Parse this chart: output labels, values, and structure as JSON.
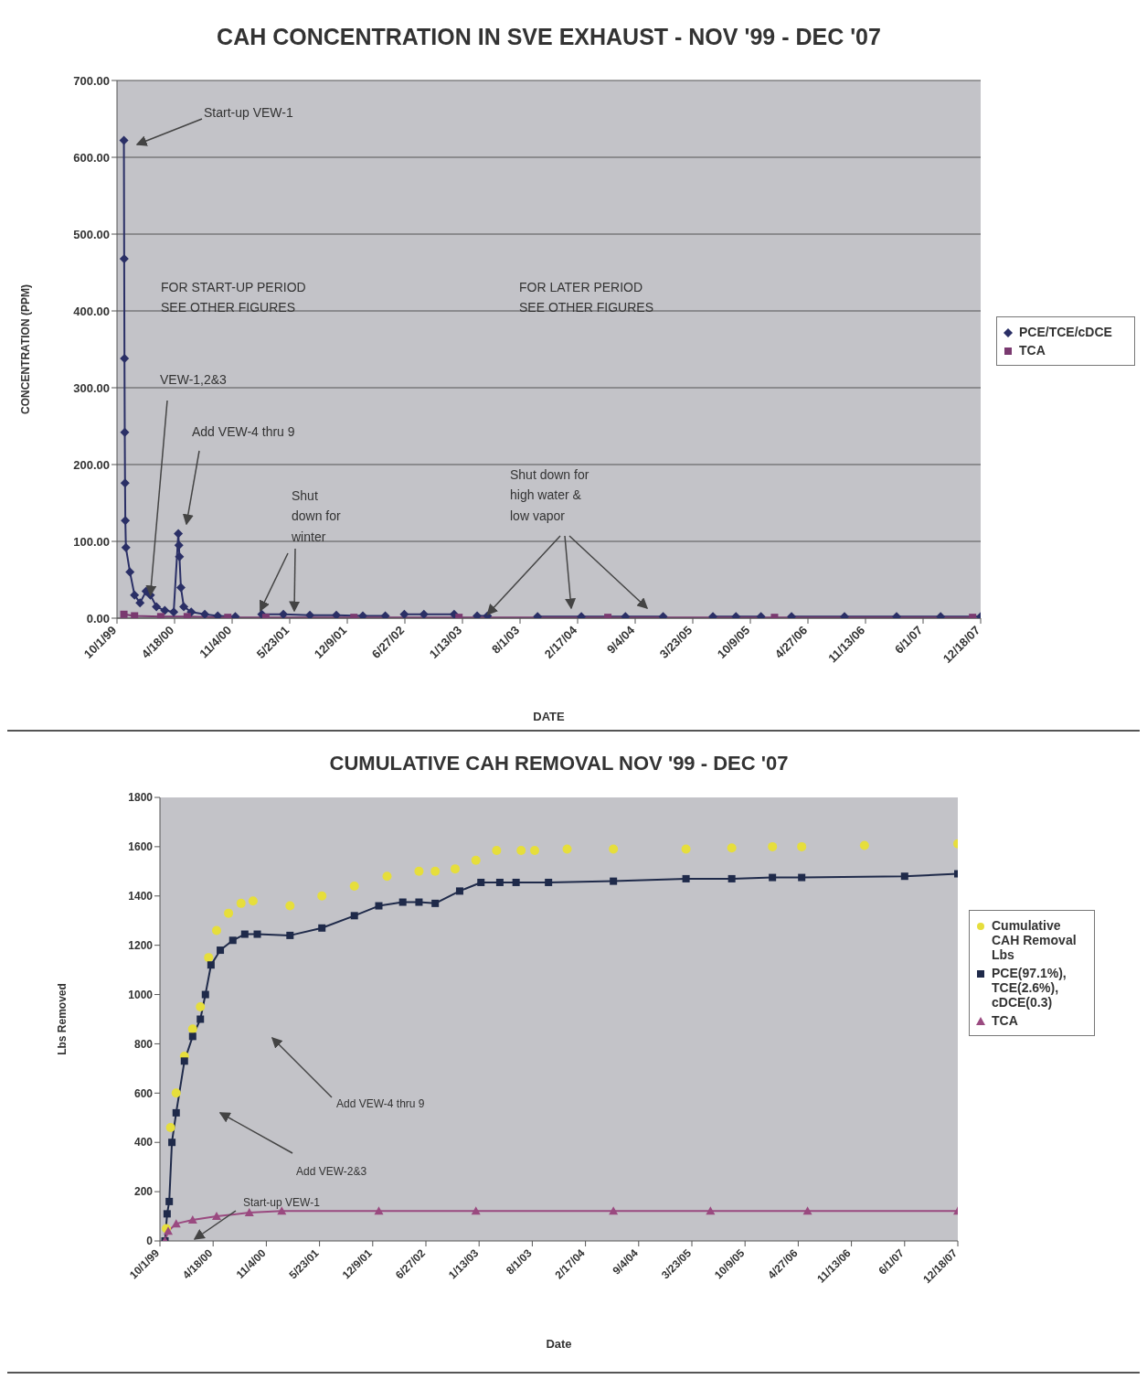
{
  "chart_data": [
    {
      "type": "line",
      "title": "CAH CONCENTRATION IN SVE EXHAUST - NOV '99 - DEC '07",
      "xlabel": "DATE",
      "ylabel": "CONCENTRATION (PPM)",
      "xlim": [
        "1999-10-01",
        "2007-12-18"
      ],
      "xticks": [
        {
          "value": "1999-10-01",
          "label": "10/1/99"
        },
        {
          "value": "2000-04-18",
          "label": "4/18/00"
        },
        {
          "value": "2000-11-04",
          "label": "11/4/00"
        },
        {
          "value": "2001-05-23",
          "label": "5/23/01"
        },
        {
          "value": "2001-12-09",
          "label": "12/9/01"
        },
        {
          "value": "2002-06-27",
          "label": "6/27/02"
        },
        {
          "value": "2003-01-13",
          "label": "1/13/03"
        },
        {
          "value": "2003-08-01",
          "label": "8/1/03"
        },
        {
          "value": "2004-02-17",
          "label": "2/17/04"
        },
        {
          "value": "2004-09-04",
          "label": "9/4/04"
        },
        {
          "value": "2005-03-23",
          "label": "3/23/05"
        },
        {
          "value": "2005-10-09",
          "label": "10/9/05"
        },
        {
          "value": "2006-04-27",
          "label": "4/27/06"
        },
        {
          "value": "2006-11-13",
          "label": "11/13/06"
        },
        {
          "value": "2007-06-01",
          "label": "6/1/07"
        },
        {
          "value": "2007-12-18",
          "label": "12/18/07"
        }
      ],
      "ylim": [
        0,
        700
      ],
      "yticks": [
        {
          "value": 0,
          "label": "0.00"
        },
        {
          "value": 100,
          "label": "100.00"
        },
        {
          "value": 200,
          "label": "200.00"
        },
        {
          "value": 300,
          "label": "300.00"
        },
        {
          "value": 400,
          "label": "400.00"
        },
        {
          "value": 500,
          "label": "500.00"
        },
        {
          "value": 600,
          "label": "600.00"
        },
        {
          "value": 700,
          "label": "700.00"
        }
      ],
      "grid": "y",
      "legend": "right",
      "series": [
        {
          "name": "PCE/TCE/cDCE",
          "color": "#2a2f66",
          "marker": "diamond",
          "x": [
            "1999-10-25",
            "1999-10-26",
            "1999-10-27",
            "1999-10-28",
            "1999-10-29",
            "1999-10-30",
            "1999-11-01",
            "1999-11-15",
            "1999-12-01",
            "1999-12-20",
            "2000-01-10",
            "2000-01-25",
            "2000-02-15",
            "2000-03-15",
            "2000-04-15",
            "2000-05-01",
            "2000-05-03",
            "2000-05-05",
            "2000-05-10",
            "2000-05-20",
            "2000-06-15",
            "2000-08-01",
            "2000-09-15",
            "2000-11-15",
            "2001-01-01",
            "2001-02-15",
            "2001-05-01",
            "2001-08-01",
            "2001-11-01",
            "2002-02-01",
            "2002-04-20",
            "2002-05-20",
            "2002-06-25",
            "2002-09-01",
            "2002-12-15",
            "2003-01-20",
            "2003-03-05",
            "2003-04-10",
            "2003-07-01",
            "2003-10-01",
            "2004-03-01",
            "2004-08-01",
            "2004-12-10",
            "2005-03-01",
            "2005-06-01",
            "2005-08-20",
            "2005-11-15",
            "2006-01-10",
            "2006-03-01",
            "2006-09-01",
            "2007-03-01",
            "2007-08-01",
            "2007-12-18"
          ],
          "values": [
            622,
            468,
            338,
            242,
            176,
            127,
            92,
            60,
            30,
            20,
            35,
            30,
            15,
            10,
            8,
            110,
            95,
            80,
            40,
            15,
            8,
            5,
            3,
            2,
            null,
            5,
            5,
            4,
            4,
            3,
            3,
            null,
            5,
            5,
            5,
            null,
            3,
            3,
            null,
            2,
            2,
            2,
            2,
            null,
            2,
            2,
            2,
            null,
            2,
            2,
            2,
            2,
            2
          ]
        },
        {
          "name": "TCA",
          "color": "#7a3a70",
          "marker": "square",
          "x": [
            "1999-10-25",
            "1999-12-01",
            "2000-03-01",
            "2000-06-01",
            "2000-10-20",
            "2001-03-01",
            "2002-01-01",
            "2003-01-01",
            "2004-06-01",
            "2006-01-01",
            "2007-11-20"
          ],
          "values": [
            5,
            3,
            2,
            2,
            1,
            1,
            1,
            1,
            1,
            1,
            1
          ]
        }
      ],
      "annotations": [
        "Start-up VEW-1",
        "FOR START-UP PERIOD\nSEE OTHER FIGURES",
        "FOR LATER PERIOD\nSEE OTHER FIGURES",
        {
          "text": "VEW-1,2&3",
          "x": "2000-01-25",
          "y": 30
        },
        "Add VEW-4 thru 9",
        {
          "text": "Shut\ndown for\nwinter",
          "x": "2001-02-10",
          "y": 10
        },
        {
          "text": "Shut down for\nhigh water &\nlow vapor",
          "x": "2003-04-10",
          "y": 5
        }
      ]
    },
    {
      "type": "line",
      "title": "CUMULATIVE CAH REMOVAL NOV '99 - DEC '07",
      "xlabel": "Date",
      "ylabel": "Lbs Removed",
      "xlim": [
        "1999-10-01",
        "2007-12-18"
      ],
      "xticks": [
        {
          "value": "1999-10-01",
          "label": "10/1/99"
        },
        {
          "value": "2000-04-18",
          "label": "4/18/00"
        },
        {
          "value": "2000-11-04",
          "label": "11/4/00"
        },
        {
          "value": "2001-05-23",
          "label": "5/23/01"
        },
        {
          "value": "2001-12-09",
          "label": "12/9/01"
        },
        {
          "value": "2002-06-27",
          "label": "6/27/02"
        },
        {
          "value": "2003-01-13",
          "label": "1/13/03"
        },
        {
          "value": "2003-08-01",
          "label": "8/1/03"
        },
        {
          "value": "2004-02-17",
          "label": "2/17/04"
        },
        {
          "value": "2004-09-04",
          "label": "9/4/04"
        },
        {
          "value": "2005-03-23",
          "label": "3/23/05"
        },
        {
          "value": "2005-10-09",
          "label": "10/9/05"
        },
        {
          "value": "2006-04-27",
          "label": "4/27/06"
        },
        {
          "value": "2006-11-13",
          "label": "11/13/06"
        },
        {
          "value": "2007-06-01",
          "label": "6/1/07"
        },
        {
          "value": "2007-12-18",
          "label": "12/18/07"
        }
      ],
      "ylim": [
        0,
        1800
      ],
      "yticks": [
        0,
        200,
        400,
        600,
        800,
        1000,
        1200,
        1400,
        1600,
        1800
      ],
      "grid": false,
      "legend": "right",
      "series": [
        {
          "name": "Cumulative CAH Removal Lbs",
          "type": "scatter",
          "color": "#e6de3c",
          "marker": "circle",
          "x": [
            "1999-10-25",
            "1999-11-10",
            "1999-12-01",
            "2000-01-01",
            "2000-02-01",
            "2000-03-01",
            "2000-04-01",
            "2000-05-01",
            "2000-06-15",
            "2000-08-01",
            "2000-09-15",
            "2001-02-01",
            "2001-06-01",
            "2001-10-01",
            "2002-02-01",
            "2002-06-01",
            "2002-08-01",
            "2002-10-15",
            "2003-01-01",
            "2003-03-20",
            "2003-06-20",
            "2003-08-10",
            "2003-12-10",
            "2004-06-01",
            "2005-03-01",
            "2005-08-20",
            "2006-01-20",
            "2006-05-10",
            "2007-01-01",
            "2007-12-18"
          ],
          "values": [
            50,
            460,
            600,
            750,
            860,
            950,
            1150,
            1260,
            1330,
            1370,
            1380,
            1360,
            1400,
            1440,
            1480,
            1500,
            1500,
            1510,
            1545,
            1585,
            1585,
            1585,
            1590,
            1590,
            1590,
            1595,
            1600,
            1600,
            1605,
            1612
          ]
        },
        {
          "name": "PCE(97.1%), TCE(2.6%), cDCE(0.3)",
          "color": "#1f2a4a",
          "marker": "square",
          "x": [
            "1999-10-20",
            "1999-10-28",
            "1999-11-05",
            "1999-11-15",
            "1999-12-01",
            "2000-01-01",
            "2000-02-01",
            "2000-03-01",
            "2000-03-20",
            "2000-04-10",
            "2000-05-15",
            "2000-07-01",
            "2000-08-15",
            "2000-10-01",
            "2001-02-01",
            "2001-06-01",
            "2001-10-01",
            "2002-01-01",
            "2002-04-01",
            "2002-06-01",
            "2002-08-01",
            "2002-11-01",
            "2003-01-20",
            "2003-04-01",
            "2003-06-01",
            "2003-10-01",
            "2004-06-01",
            "2005-03-01",
            "2005-08-20",
            "2006-01-20",
            "2006-05-10",
            "2007-06-01",
            "2007-12-18"
          ],
          "values": [
            0,
            110,
            160,
            400,
            520,
            730,
            830,
            900,
            1000,
            1120,
            1180,
            1220,
            1245,
            1245,
            1240,
            1270,
            1320,
            1360,
            1375,
            1375,
            1370,
            1420,
            1455,
            1455,
            1455,
            1455,
            1460,
            1470,
            1470,
            1475,
            1475,
            1480,
            1490
          ]
        },
        {
          "name": "TCA",
          "color": "#9a4a80",
          "marker": "triangle",
          "x": [
            "1999-10-20",
            "1999-11-01",
            "1999-12-01",
            "2000-02-01",
            "2000-05-01",
            "2000-09-01",
            "2001-01-01",
            "2002-01-01",
            "2003-01-01",
            "2004-06-01",
            "2005-06-01",
            "2006-06-01",
            "2007-12-18"
          ],
          "values": [
            0,
            40,
            70,
            85,
            100,
            115,
            122,
            122,
            122,
            122,
            122,
            122,
            122
          ]
        }
      ],
      "annotations": [
        "Add VEW-4 thru 9",
        "Add VEW-2&3",
        "Start-up VEW-1"
      ]
    }
  ]
}
